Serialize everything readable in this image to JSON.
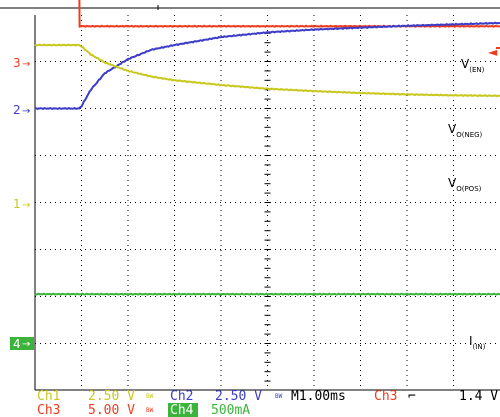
{
  "colors": {
    "ch1": "#c8c81e",
    "ch2": "#3c3cc8",
    "ch3": "#f03c1e",
    "ch4": "#3cb43c",
    "grid": "#000000",
    "background": "#ffffff"
  },
  "markers": {
    "ch3": "3",
    "ch2": "2",
    "ch1": "1",
    "ch4": "4"
  },
  "trigger_marker": "◄",
  "labels": {
    "ven": {
      "main": "V",
      "sub": "(EN)"
    },
    "voneg": {
      "main": "V",
      "sub": "O(NEG)"
    },
    "vopos": {
      "main": "V",
      "sub": "O(POS)"
    },
    "iin": {
      "main": "I",
      "sub": "(IN)"
    }
  },
  "status": {
    "row1": {
      "ch1_name": "Ch1",
      "ch1_scale": "2.50 V",
      "ch1_bw": "BW",
      "ch2_name": "Ch2",
      "ch2_scale": "2.50 V",
      "ch2_bw": "BW",
      "timebase": "M1.00ms",
      "trig_source": "Ch3",
      "trig_slope": "⌐",
      "trig_level": "1.4 V"
    },
    "row2": {
      "ch3_name": "Ch3",
      "ch3_scale": "5.00 V",
      "ch3_bw": "BW",
      "ch4_name": "Ch4",
      "ch4_scale": "500mA"
    }
  },
  "chart_data": {
    "type": "line",
    "title": "",
    "xlabel": "",
    "ylabel": "",
    "x_unit": "ms",
    "x_range": [
      0,
      10
    ],
    "grid": true,
    "series": [
      {
        "name": "V(EN)",
        "channel": "Ch3",
        "scale": "5.00 V/div",
        "x": [
          0,
          0.95,
          0.96,
          10
        ],
        "y_div": [
          4.75,
          4.75,
          3.75,
          3.75
        ]
      },
      {
        "name": "VO(NEG)",
        "channel": "Ch2",
        "scale": "2.50 V/div",
        "x": [
          0,
          0.95,
          1.0,
          1.2,
          1.5,
          2.0,
          2.5,
          3.0,
          4.0,
          5.0,
          6.0,
          7.0,
          8.0,
          9.0,
          10.0
        ],
        "y_div": [
          2.0,
          2.0,
          2.05,
          2.4,
          2.75,
          3.05,
          3.25,
          3.35,
          3.52,
          3.62,
          3.68,
          3.72,
          3.76,
          3.79,
          3.82
        ]
      },
      {
        "name": "VO(POS)",
        "channel": "Ch1",
        "scale": "2.50 V/div",
        "x": [
          0,
          0.95,
          1.0,
          1.2,
          1.5,
          2.0,
          2.5,
          3.0,
          4.0,
          5.0,
          6.0,
          7.0,
          8.0,
          9.0,
          10.0
        ],
        "y_div": [
          3.35,
          3.35,
          3.32,
          3.15,
          2.98,
          2.8,
          2.68,
          2.6,
          2.5,
          2.42,
          2.37,
          2.33,
          2.3,
          2.28,
          2.27
        ]
      },
      {
        "name": "I(IN)",
        "channel": "Ch4",
        "scale": "500mA/div",
        "x": [
          0,
          10
        ],
        "y_div": [
          -1.95,
          -1.95
        ]
      }
    ]
  }
}
